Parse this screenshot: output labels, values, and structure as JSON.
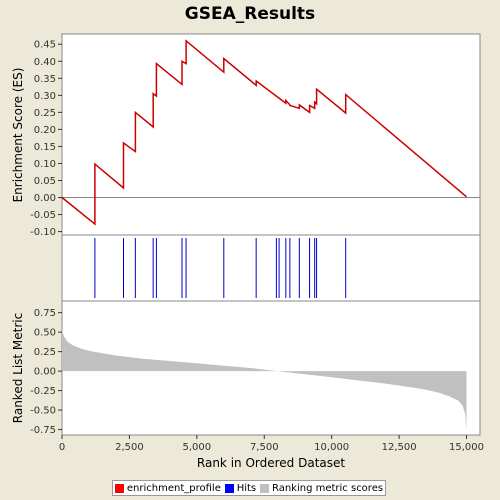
{
  "title": "GSEA_Results",
  "colors": {
    "enrichment": "#cc0000",
    "hits": "#0000cc",
    "ranking": "#c0c0c0",
    "background": "#ece9d8",
    "plot_bg": "#ffffff"
  },
  "legend": [
    {
      "label": "enrichment_profile",
      "color": "#ff0000"
    },
    {
      "label": "Hits",
      "color": "#0000ff"
    },
    {
      "label": "Ranking metric scores",
      "color": "#c0c0c0"
    }
  ],
  "chart_data": [
    {
      "type": "line",
      "ylabel": "Enrichment Score (ES)",
      "ylim": [
        -0.11,
        0.48
      ],
      "yticks": [
        -0.1,
        -0.05,
        0.0,
        0.05,
        0.1,
        0.15,
        0.2,
        0.25,
        0.3,
        0.35,
        0.4,
        0.45
      ],
      "ytick_labels": [
        "-0.10",
        "-0.05",
        "0.00",
        "0.05",
        "0.10",
        "0.15",
        "0.20",
        "0.25",
        "0.30",
        "0.35",
        "0.40",
        "0.45"
      ],
      "xlim": [
        0,
        15500
      ],
      "series": [
        {
          "x": [
            0,
            1220,
            1220,
            2280,
            2280,
            2720,
            2720,
            3380,
            3380,
            3500,
            3500,
            4450,
            4450,
            4600,
            4600,
            6000,
            6000,
            7200,
            7200,
            8300,
            8300,
            8450,
            8450,
            8800,
            8800,
            9180,
            9180,
            9370,
            9370,
            9440,
            9440,
            10520,
            10520,
            15000
          ],
          "y": [
            0.0,
            -0.078,
            0.098,
            0.028,
            0.16,
            0.135,
            0.25,
            0.207,
            0.305,
            0.298,
            0.393,
            0.332,
            0.4,
            0.393,
            0.46,
            0.368,
            0.408,
            0.329,
            0.342,
            0.277,
            0.285,
            0.272,
            0.27,
            0.262,
            0.272,
            0.25,
            0.27,
            0.262,
            0.28,
            0.275,
            0.318,
            0.248,
            0.302,
            0.002
          ]
        }
      ]
    },
    {
      "type": "scatter",
      "title": "Hits",
      "x": [
        1220,
        2280,
        2720,
        3380,
        3500,
        4450,
        4600,
        6000,
        7200,
        7950,
        8050,
        8300,
        8450,
        8800,
        9180,
        9370,
        9440,
        10520
      ]
    },
    {
      "type": "area",
      "xlabel": "Rank in Ordered Dataset",
      "ylabel": "Ranked List Metric",
      "ylim": [
        -0.82,
        0.9
      ],
      "yticks": [
        -0.75,
        -0.5,
        -0.25,
        0.0,
        0.25,
        0.5,
        0.75
      ],
      "ytick_labels": [
        "-0.75",
        "-0.50",
        "-0.25",
        "0.00",
        "0.25",
        "0.50",
        "0.75"
      ],
      "xticks": [
        0,
        2500,
        5000,
        7500,
        10000,
        12500,
        15000
      ],
      "xtick_labels": [
        "0",
        "2,500",
        "5,000",
        "7,500",
        "10,000",
        "12,500",
        "15,000"
      ],
      "xlim": [
        0,
        15500
      ],
      "series": [
        {
          "x": [
            0,
            20,
            80,
            200,
            400,
            700,
            1000,
            1500,
            2000,
            2500,
            3000,
            4000,
            5000,
            6000,
            7000,
            7500,
            8000,
            9000,
            10000,
            11000,
            12000,
            13000,
            13500,
            14000,
            14400,
            14700,
            14850,
            14950,
            15000
          ],
          "y": [
            0.55,
            0.5,
            0.44,
            0.38,
            0.33,
            0.29,
            0.26,
            0.23,
            0.2,
            0.18,
            0.16,
            0.13,
            0.1,
            0.07,
            0.04,
            0.02,
            0.0,
            -0.04,
            -0.08,
            -0.12,
            -0.16,
            -0.21,
            -0.24,
            -0.28,
            -0.33,
            -0.38,
            -0.44,
            -0.55,
            -0.76
          ]
        }
      ]
    }
  ]
}
